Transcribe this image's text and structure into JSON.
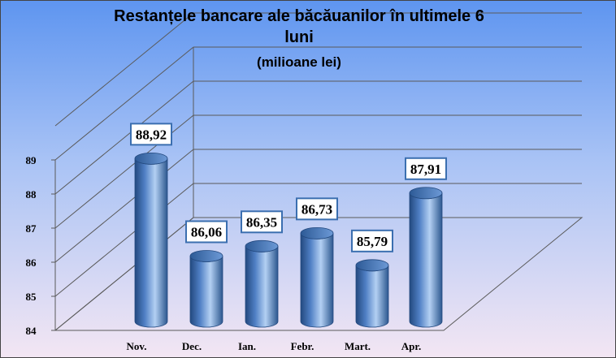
{
  "chart_data": {
    "type": "bar",
    "title": "Restanțele bancare ale băcăuanilor în ultimele 6 luni",
    "title_lines": [
      "Restanțele bancare ale băcăuanilor în ultimele 6",
      "luni"
    ],
    "subtitle": "(milioane lei)",
    "categories": [
      "Nov.",
      "Dec.",
      "Ian.",
      "Febr.",
      "Mart.",
      "Apr."
    ],
    "values": [
      88.92,
      86.06,
      86.35,
      86.73,
      85.79,
      87.91
    ],
    "value_labels": [
      "88,92",
      "86,06",
      "86,35",
      "86,73",
      "85,79",
      "87,91"
    ],
    "y_ticks": [
      "84",
      "85",
      "86",
      "87",
      "88",
      "89"
    ],
    "ylim": [
      84,
      89
    ],
    "grid": true,
    "legend": "none",
    "style": "3d-cylinder",
    "colors": {
      "bar": "#4f7fc4",
      "bar_dark": "#23497f",
      "bar_light": "#b3d0f3",
      "background_top": "#5e95f0",
      "background_bottom": "#f3e6f3",
      "grid": "#5a5a5a",
      "label_border": "#3b6fb0"
    }
  }
}
